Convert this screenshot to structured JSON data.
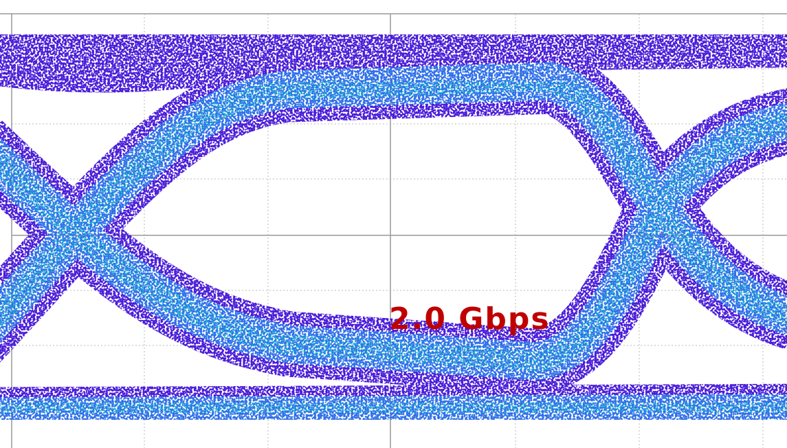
{
  "label": "2.0 Gbps"
}
